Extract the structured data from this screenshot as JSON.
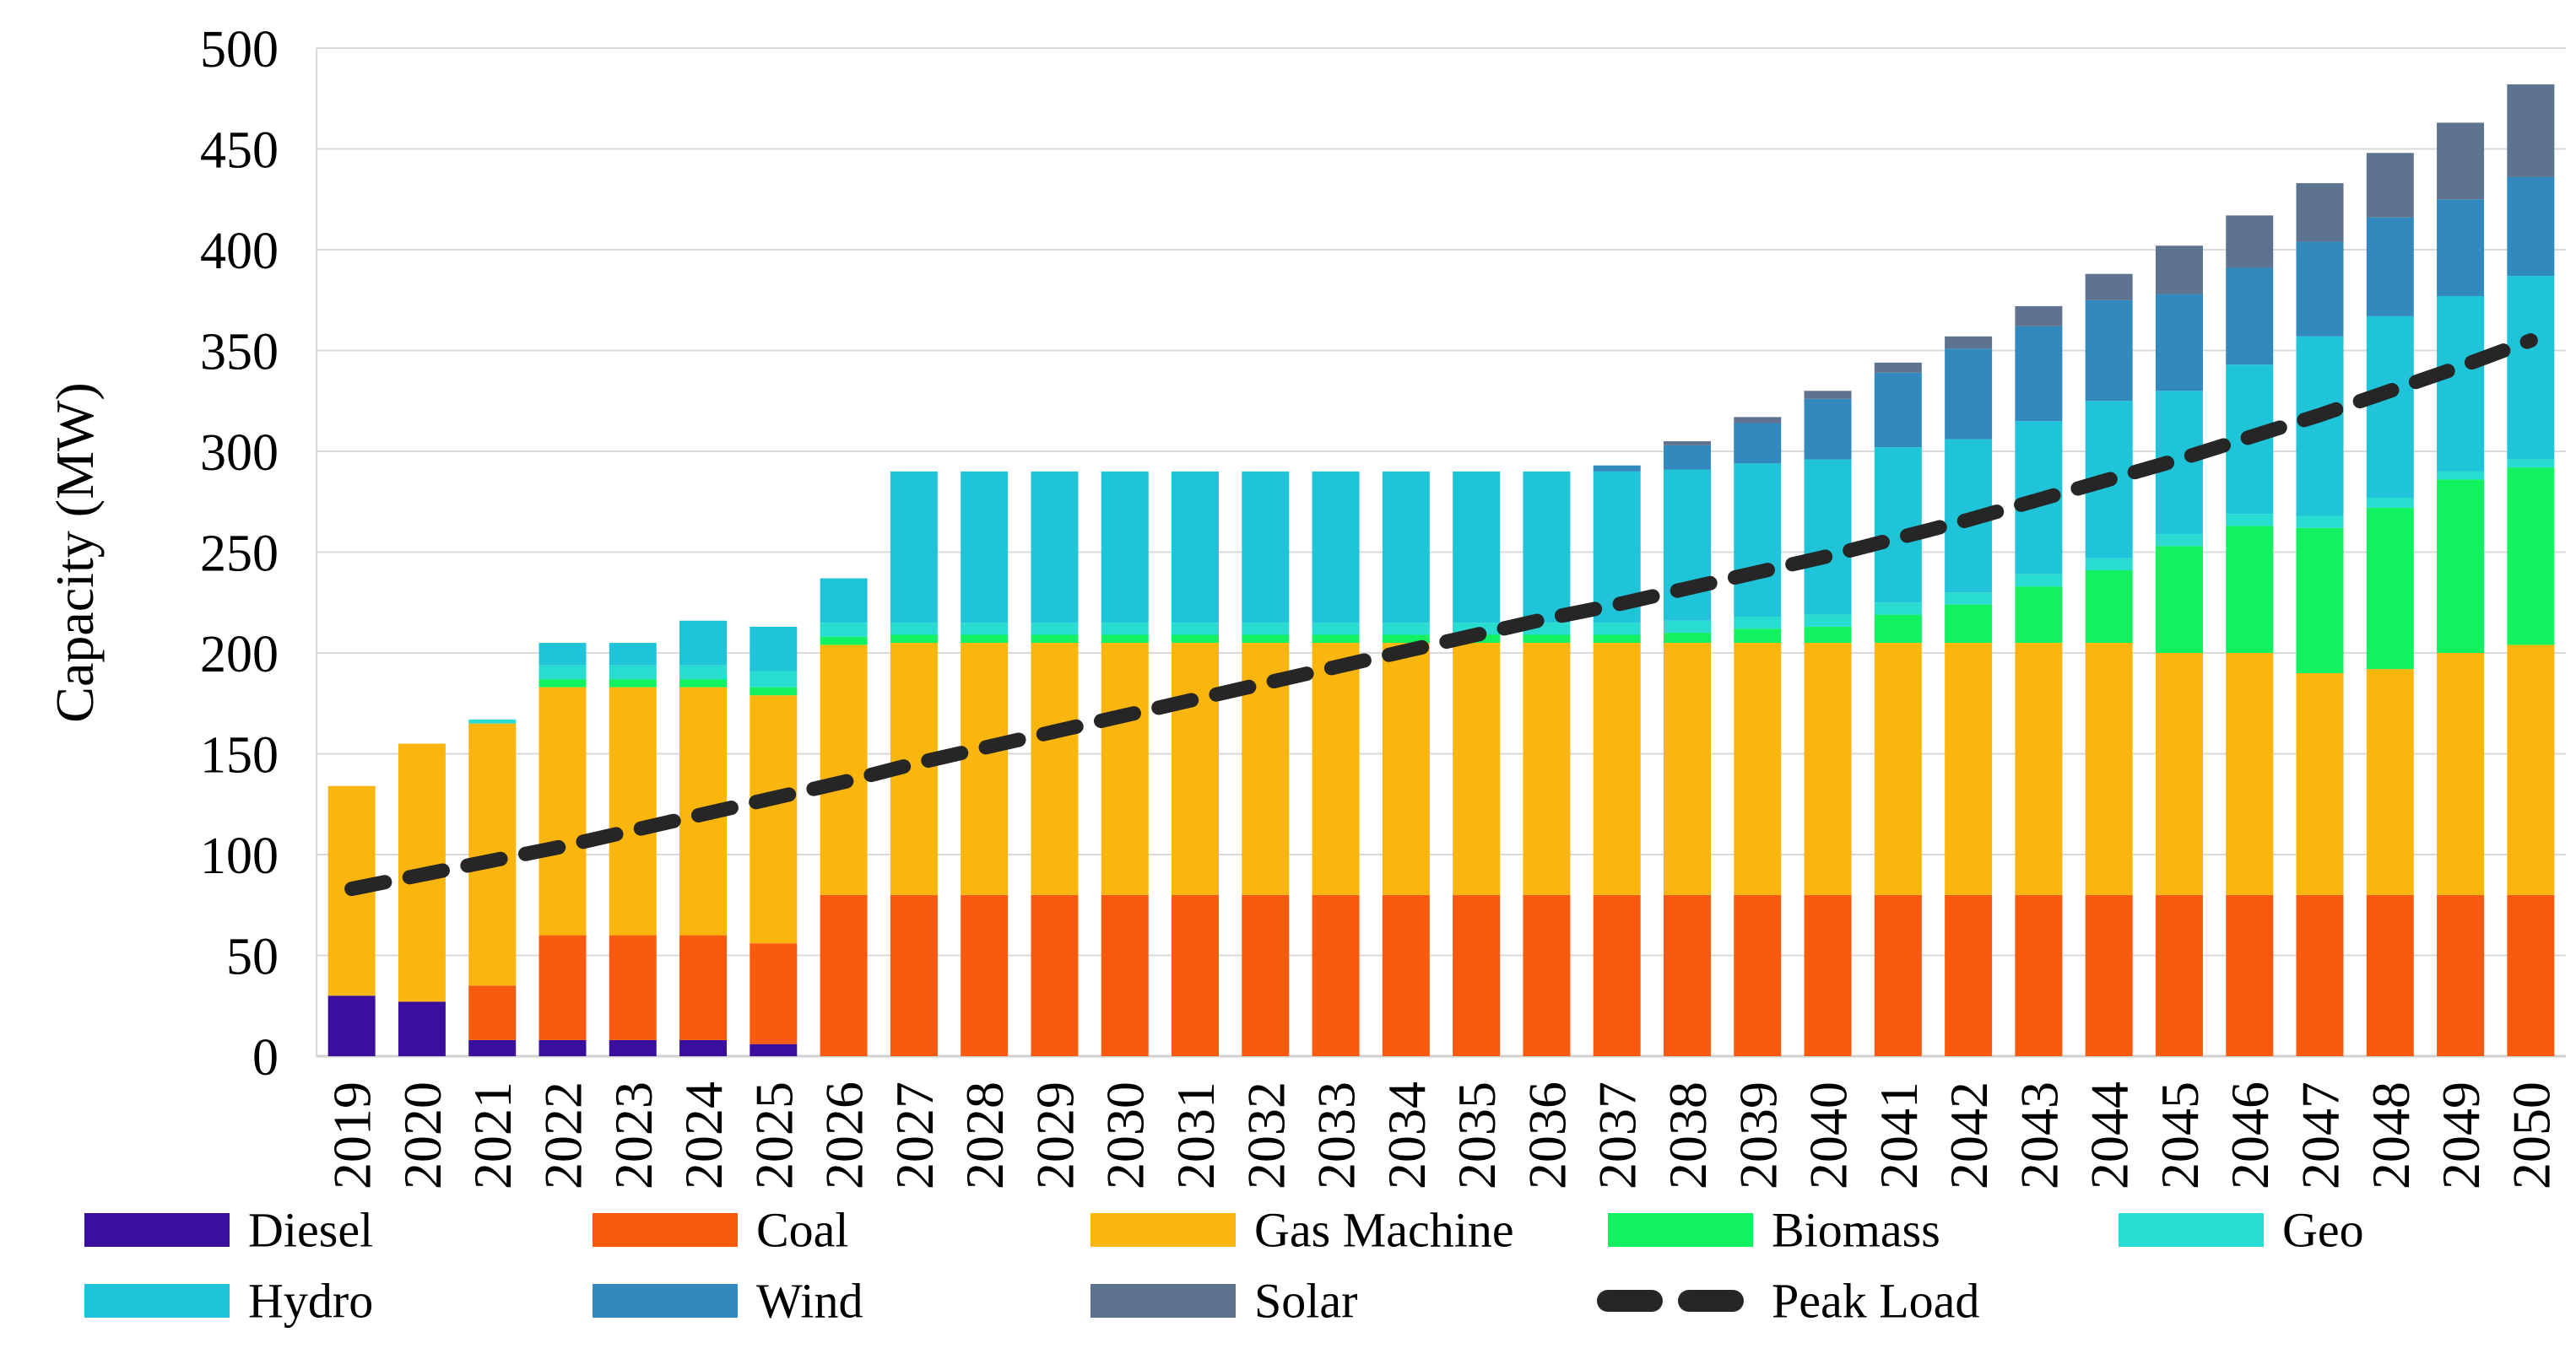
{
  "chart_data": {
    "type": "bar",
    "stacked": true,
    "title": "",
    "xlabel": "",
    "ylabel": "Capacity (MW)",
    "ylim": [
      0,
      500
    ],
    "yticks": [
      0,
      50,
      100,
      150,
      200,
      250,
      300,
      350,
      400,
      450,
      500
    ],
    "grid": true,
    "legend_position": "bottom",
    "categories": [
      "2019",
      "2020",
      "2021",
      "2022",
      "2023",
      "2024",
      "2025",
      "2026",
      "2027",
      "2028",
      "2029",
      "2030",
      "2031",
      "2032",
      "2033",
      "2034",
      "2035",
      "2036",
      "2037",
      "2038",
      "2039",
      "2040",
      "2041",
      "2042",
      "2043",
      "2044",
      "2045",
      "2046",
      "2047",
      "2048",
      "2049",
      "2050"
    ],
    "series": [
      {
        "name": "Diesel",
        "color": "#3a0f9e",
        "values": [
          30,
          27,
          8,
          8,
          8,
          8,
          6,
          0,
          0,
          0,
          0,
          0,
          0,
          0,
          0,
          0,
          0,
          0,
          0,
          0,
          0,
          0,
          0,
          0,
          0,
          0,
          0,
          0,
          0,
          0,
          0,
          0
        ]
      },
      {
        "name": "Coal",
        "color": "#f95a0e",
        "values": [
          0,
          0,
          27,
          52,
          52,
          52,
          50,
          80,
          80,
          80,
          80,
          80,
          80,
          80,
          80,
          80,
          80,
          80,
          80,
          80,
          80,
          80,
          80,
          80,
          80,
          80,
          80,
          80,
          80,
          80,
          80,
          80
        ]
      },
      {
        "name": "Gas Machine",
        "color": "#fbb60d",
        "values": [
          104,
          128,
          130,
          123,
          123,
          123,
          123,
          124,
          125,
          125,
          125,
          125,
          125,
          125,
          125,
          125,
          125,
          125,
          125,
          125,
          125,
          125,
          125,
          125,
          125,
          125,
          120,
          120,
          110,
          112,
          120,
          124
        ]
      },
      {
        "name": "Biomass",
        "color": "#12f261",
        "values": [
          0,
          0,
          0,
          4,
          4,
          4,
          4,
          4,
          4,
          4,
          4,
          4,
          4,
          4,
          4,
          4,
          4,
          4,
          4,
          5,
          7,
          8,
          14,
          19,
          28,
          36,
          53,
          63,
          72,
          80,
          86,
          88
        ]
      },
      {
        "name": "Geo",
        "color": "#29dcd1",
        "values": [
          0,
          0,
          2,
          7,
          7,
          7,
          8,
          7,
          6,
          6,
          6,
          6,
          6,
          6,
          6,
          6,
          6,
          6,
          6,
          6,
          6,
          6,
          6,
          6,
          6,
          6,
          6,
          6,
          6,
          5,
          4,
          4
        ]
      },
      {
        "name": "Hydro",
        "color": "#20c4d8",
        "values": [
          0,
          0,
          0,
          11,
          11,
          22,
          22,
          22,
          75,
          75,
          75,
          75,
          75,
          75,
          75,
          75,
          75,
          75,
          75,
          75,
          76,
          77,
          77,
          76,
          76,
          78,
          71,
          74,
          89,
          90,
          87,
          91
        ]
      },
      {
        "name": "Wind",
        "color": "#3189be",
        "values": [
          0,
          0,
          0,
          0,
          0,
          0,
          0,
          0,
          0,
          0,
          0,
          0,
          0,
          0,
          0,
          0,
          0,
          0,
          3,
          12,
          20,
          30,
          37,
          45,
          47,
          50,
          48,
          48,
          47,
          49,
          48,
          49
        ]
      },
      {
        "name": "Solar",
        "color": "#5e7390",
        "values": [
          0,
          0,
          0,
          0,
          0,
          0,
          0,
          0,
          0,
          0,
          0,
          0,
          0,
          0,
          0,
          0,
          0,
          0,
          0,
          2,
          3,
          4,
          5,
          6,
          10,
          13,
          24,
          26,
          29,
          32,
          38,
          46
        ]
      }
    ],
    "line_series": {
      "name": "Peak Load",
      "color": "#262626",
      "style": "dashed",
      "values": [
        83,
        90,
        97,
        104,
        112,
        120,
        128,
        136,
        145,
        153,
        161,
        169,
        177,
        185,
        193,
        201,
        209,
        217,
        224,
        232,
        240,
        248,
        257,
        266,
        276,
        286,
        296,
        307,
        318,
        330,
        342,
        355
      ]
    },
    "legend_rows": [
      [
        "Diesel",
        "Coal",
        "Gas Machine",
        "Biomass",
        "Geo"
      ],
      [
        "Hydro",
        "Wind",
        "Solar",
        "Peak Load"
      ]
    ],
    "grid_color": "#d9d9d9",
    "axis_color": "#d0d0d0"
  }
}
